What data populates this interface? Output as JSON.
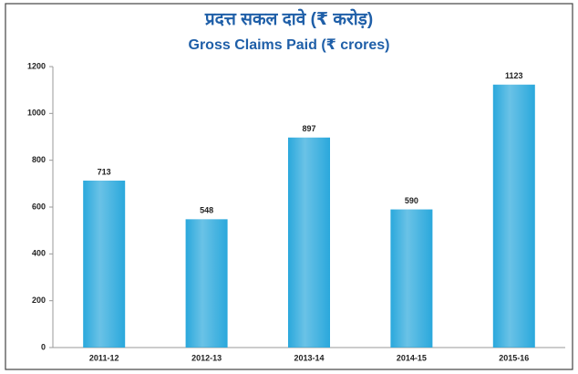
{
  "chart_data": {
    "type": "bar",
    "title": "प्रदत्त सकल दावे (₹ करोड़)",
    "subtitle": "Gross Claims Paid (₹ crores)",
    "categories": [
      "2011-12",
      "2012-13",
      "2013-14",
      "2014-15",
      "2015-16"
    ],
    "values": [
      713,
      548,
      897,
      590,
      1123
    ],
    "color": "#2aa8dc",
    "ylim": [
      0,
      1200
    ],
    "yticks": [
      0,
      200,
      400,
      600,
      800,
      1000,
      1200
    ],
    "grid": false
  }
}
